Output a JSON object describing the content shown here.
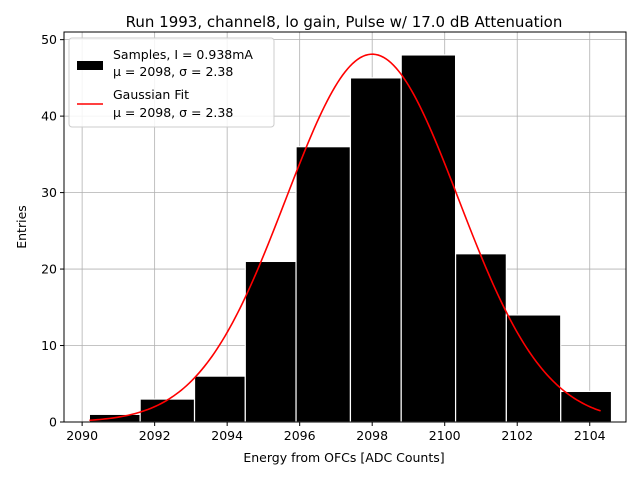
{
  "chart_data": {
    "type": "bar",
    "title": "Run 1993, channel8, lo gain, Pulse w/ 17.0 dB Attenuation",
    "xlabel": "Energy from OFCs [ADC Counts]",
    "ylabel": "Entries",
    "xlim": [
      2089.5,
      2105.0
    ],
    "ylim": [
      0,
      51
    ],
    "xticks": [
      2090,
      2092,
      2094,
      2096,
      2098,
      2100,
      2102,
      2104
    ],
    "yticks": [
      0,
      10,
      20,
      30,
      40,
      50
    ],
    "grid": true,
    "legend_position": "top-left",
    "histogram": {
      "name_line1": "Samples, I = 0.938mA",
      "name_line2": "μ = 2098, σ = 2.38",
      "color": "#000000",
      "bin_edges": [
        2090.2,
        2091.6,
        2093.1,
        2094.5,
        2095.9,
        2097.4,
        2098.8,
        2100.3,
        2101.7,
        2103.2,
        2104.6
      ],
      "counts": [
        1,
        3,
        6,
        21,
        36,
        45,
        48,
        22,
        14,
        4
      ]
    },
    "fit": {
      "name_line1": "Gaussian Fit",
      "name_line2": "μ = 2098, σ = 2.38",
      "color": "#ff0000",
      "amplitude": 48.1,
      "mu": 2098.0,
      "sigma": 2.38,
      "x_range": [
        2090.2,
        2104.3
      ]
    }
  }
}
